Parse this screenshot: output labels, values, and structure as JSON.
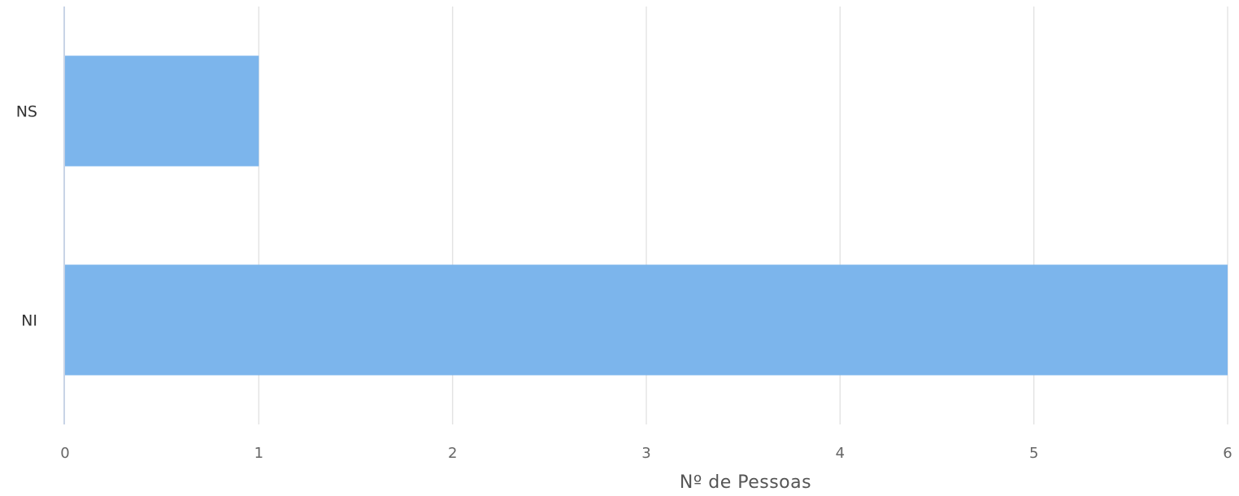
{
  "chart_data": {
    "type": "bar",
    "orientation": "horizontal",
    "categories": [
      "NS",
      "NI"
    ],
    "series": [
      {
        "values": [
          1,
          6
        ],
        "color": "#7cb5ec"
      }
    ],
    "xlabel": "Nº de Pessoas",
    "ylabel": "",
    "xlim": [
      0,
      6
    ],
    "xticks": [
      0,
      1,
      2,
      3,
      4,
      5,
      6
    ],
    "grid": true
  }
}
